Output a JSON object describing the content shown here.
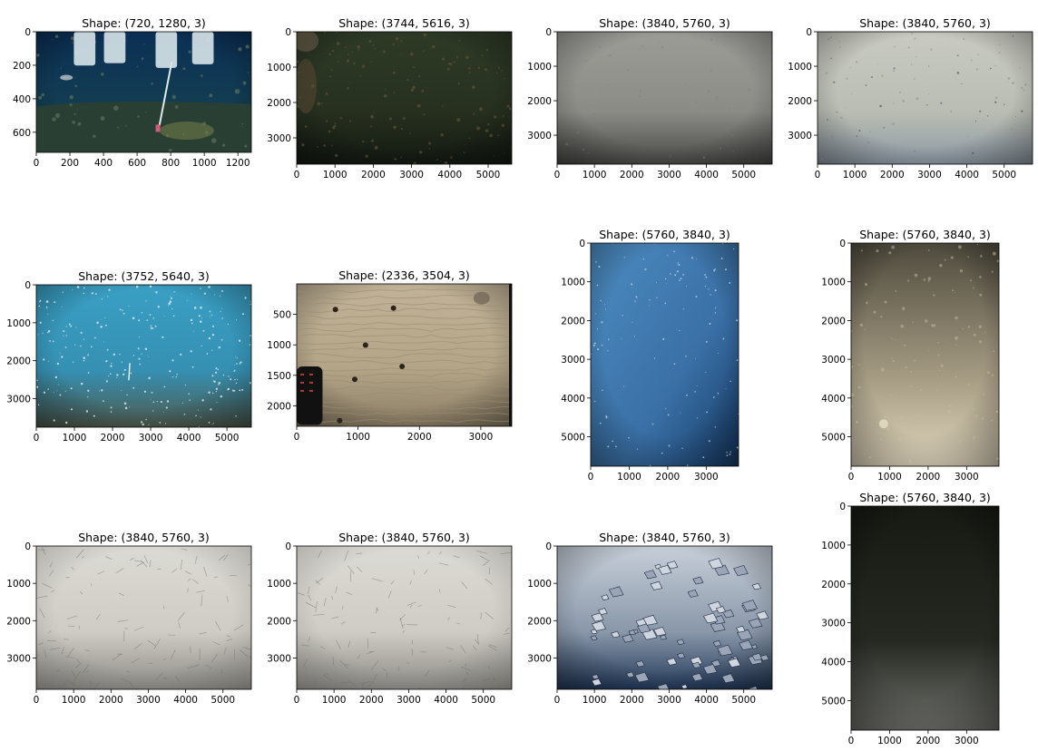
{
  "chart_data": [
    {
      "type": "image",
      "title": "Shape: (720, 1280, 3)",
      "xlim": [
        0,
        1280
      ],
      "ylim": [
        720,
        0
      ],
      "xticks": [
        0,
        200,
        400,
        600,
        800,
        1000,
        1200
      ],
      "yticks": [
        0,
        200,
        400,
        600
      ],
      "image": {
        "theme": "deep-water-equipment",
        "colors": [
          "#0b2f55",
          "#123d52",
          "#1d4a45"
        ]
      }
    },
    {
      "type": "image",
      "title": "Shape: (3744, 5616, 3)",
      "xlim": [
        0,
        5616
      ],
      "ylim": [
        3744,
        0
      ],
      "xticks": [
        0,
        1000,
        2000,
        3000,
        4000,
        5000
      ],
      "yticks": [
        0,
        1000,
        2000,
        3000
      ],
      "image": {
        "theme": "dark-green-seafloor",
        "colors": [
          "#2e3a26",
          "#27301f",
          "#131a12"
        ]
      }
    },
    {
      "type": "image",
      "title": "Shape: (3840, 5760, 3)",
      "xlim": [
        0,
        5760
      ],
      "ylim": [
        3840,
        0
      ],
      "xticks": [
        0,
        1000,
        2000,
        3000,
        4000,
        5000
      ],
      "yticks": [
        0,
        1000,
        2000,
        3000
      ],
      "image": {
        "theme": "grey-sediment",
        "colors": [
          "#9b9c96",
          "#8b8c86",
          "#4a4b48"
        ]
      }
    },
    {
      "type": "image",
      "title": "Shape: (3840, 5760, 3)",
      "xlim": [
        0,
        5760
      ],
      "ylim": [
        3840,
        0
      ],
      "xticks": [
        0,
        1000,
        2000,
        3000,
        4000,
        5000
      ],
      "yticks": [
        0,
        1000,
        2000,
        3000
      ],
      "image": {
        "theme": "pale-grey-sediment",
        "colors": [
          "#c9cbc2",
          "#babdb3",
          "#8e9aa6"
        ]
      }
    },
    {
      "type": "image",
      "title": "Shape: (3752, 5640, 3)",
      "xlim": [
        0,
        5640
      ],
      "ylim": [
        3752,
        0
      ],
      "xticks": [
        0,
        1000,
        2000,
        3000,
        4000,
        5000
      ],
      "yticks": [
        0,
        1000,
        2000,
        3000
      ],
      "image": {
        "theme": "blue-water-column",
        "colors": [
          "#3a9fc4",
          "#3590b3",
          "#4e5a4d"
        ]
      }
    },
    {
      "type": "image",
      "title": "Shape: (2336, 3504, 3)",
      "xlim": [
        0,
        3504
      ],
      "ylim": [
        2336,
        0
      ],
      "xticks": [
        0,
        1000,
        2000,
        3000
      ],
      "yticks": [
        500,
        1000,
        1500,
        2000
      ],
      "image": {
        "theme": "rippled-sand",
        "colors": [
          "#c2b398",
          "#b3a487",
          "#8d7f66"
        ]
      }
    },
    {
      "type": "image",
      "title": "Shape: (5760, 3840, 3)",
      "xlim": [
        0,
        3840
      ],
      "ylim": [
        5760,
        0
      ],
      "xticks": [
        0,
        1000,
        2000,
        3000
      ],
      "yticks": [
        0,
        1000,
        2000,
        3000,
        4000,
        5000
      ],
      "image": {
        "theme": "blue-water-portrait",
        "colors": [
          "#4c8bc0",
          "#3a70a6",
          "#163a66"
        ]
      }
    },
    {
      "type": "image",
      "title": "Shape: (5760, 3840, 3)",
      "xlim": [
        0,
        3840
      ],
      "ylim": [
        5760,
        0
      ],
      "xticks": [
        0,
        1000,
        2000,
        3000
      ],
      "yticks": [
        0,
        1000,
        2000,
        3000,
        4000,
        5000
      ],
      "image": {
        "theme": "tan-seafloor-portrait",
        "colors": [
          "#4e4a3c",
          "#a59b83",
          "#e0d6bd"
        ]
      }
    },
    {
      "type": "image",
      "title": "Shape: (3840, 5760, 3)",
      "xlim": [
        0,
        5760
      ],
      "ylim": [
        3840,
        0
      ],
      "xticks": [
        0,
        1000,
        2000,
        3000,
        4000,
        5000
      ],
      "yticks": [
        0,
        1000,
        2000,
        3000
      ],
      "image": {
        "theme": "white-sediment-tracks",
        "colors": [
          "#dcdad4",
          "#cfccc5",
          "#8d8b86"
        ]
      }
    },
    {
      "type": "image",
      "title": "Shape: (3840, 5760, 3)",
      "xlim": [
        0,
        5760
      ],
      "ylim": [
        3840,
        0
      ],
      "xticks": [
        0,
        1000,
        2000,
        3000,
        4000,
        5000
      ],
      "yticks": [
        0,
        1000,
        2000,
        3000
      ],
      "image": {
        "theme": "white-sediment-tracks",
        "colors": [
          "#dcdad4",
          "#cfccc5",
          "#8d8b86"
        ]
      }
    },
    {
      "type": "image",
      "title": "Shape: (3840, 5760, 3)",
      "xlim": [
        0,
        5760
      ],
      "ylim": [
        3840,
        0
      ],
      "xticks": [
        0,
        1000,
        2000,
        3000,
        4000,
        5000
      ],
      "yticks": [
        0,
        1000,
        2000,
        3000
      ],
      "image": {
        "theme": "rocky-rubble",
        "colors": [
          "#c7cfd9",
          "#8997a9",
          "#23395a"
        ]
      }
    },
    {
      "type": "image",
      "title": "Shape: (5760, 3840, 3)",
      "xlim": [
        0,
        3840
      ],
      "ylim": [
        5760,
        0
      ],
      "xticks": [
        0,
        1000,
        2000,
        3000
      ],
      "yticks": [
        0,
        1000,
        2000,
        3000,
        4000,
        5000
      ],
      "image": {
        "theme": "dark-portrait",
        "colors": [
          "#161a12",
          "#252821",
          "#6f706b"
        ]
      }
    }
  ]
}
